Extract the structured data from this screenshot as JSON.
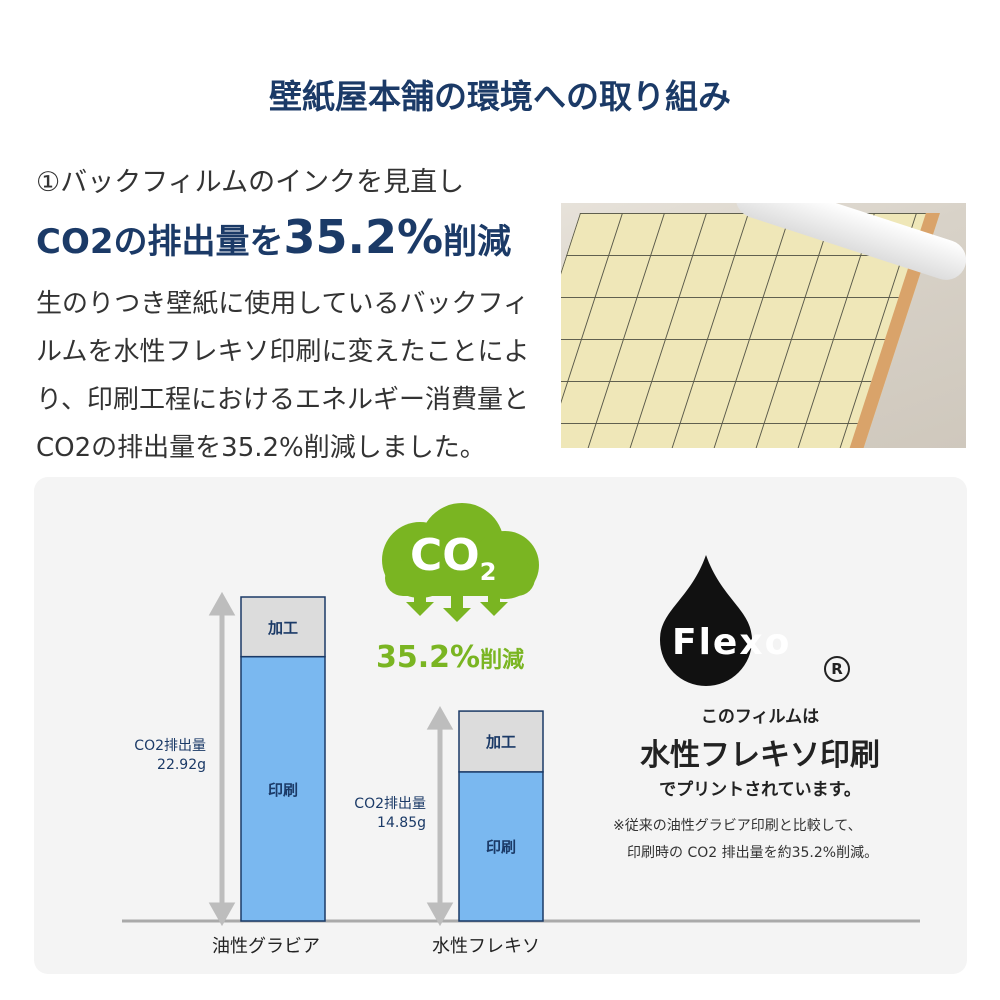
{
  "title": "壁紙屋本舗の環境への取り組み",
  "intro": {
    "heading1": "①バックフィルムのインクを見直し",
    "heading2_pre": "CO2の排出量を",
    "heading2_big": "35.2%",
    "heading2_post": "削減",
    "body": "生のりつき壁紙に使用しているバックフィルムを水性フレキソ印刷に変えたことにより、印刷工程におけるエネルギー消費量とCO2の排出量を35.2%削減しました。"
  },
  "badge": {
    "co2": "CO",
    "co2_sub": "2",
    "reduction": "35.2%",
    "reduction_suffix": "削減"
  },
  "flexo": {
    "logo": "Flexo",
    "reg": "R",
    "line1": "このフィルムは",
    "line2": "水性フレキソ印刷",
    "line3": "でプリントされています。",
    "note1": "※従来の油性グラビア印刷と比較して、",
    "note2": "印刷時の CO2 排出量を約35.2%削減。"
  },
  "colors": {
    "navy": "#1b3a67",
    "green": "#7ab522",
    "print": "#7ab8f0",
    "process": "#dcdcdc",
    "arrow": "#bdbdbd"
  },
  "chart_data": {
    "type": "bar",
    "stacked": true,
    "categories": [
      "油性グラビア",
      "水性フレキソ"
    ],
    "series": [
      {
        "name": "印刷",
        "values": [
          18.7,
          10.55
        ]
      },
      {
        "name": "加工",
        "values": [
          4.22,
          4.3
        ]
      }
    ],
    "totals": [
      22.92,
      14.85
    ],
    "total_labels": [
      {
        "label": "CO2排出量",
        "value": "22.92g"
      },
      {
        "label": "CO2排出量",
        "value": "14.85g"
      }
    ],
    "ylim": [
      0,
      22.92
    ]
  }
}
